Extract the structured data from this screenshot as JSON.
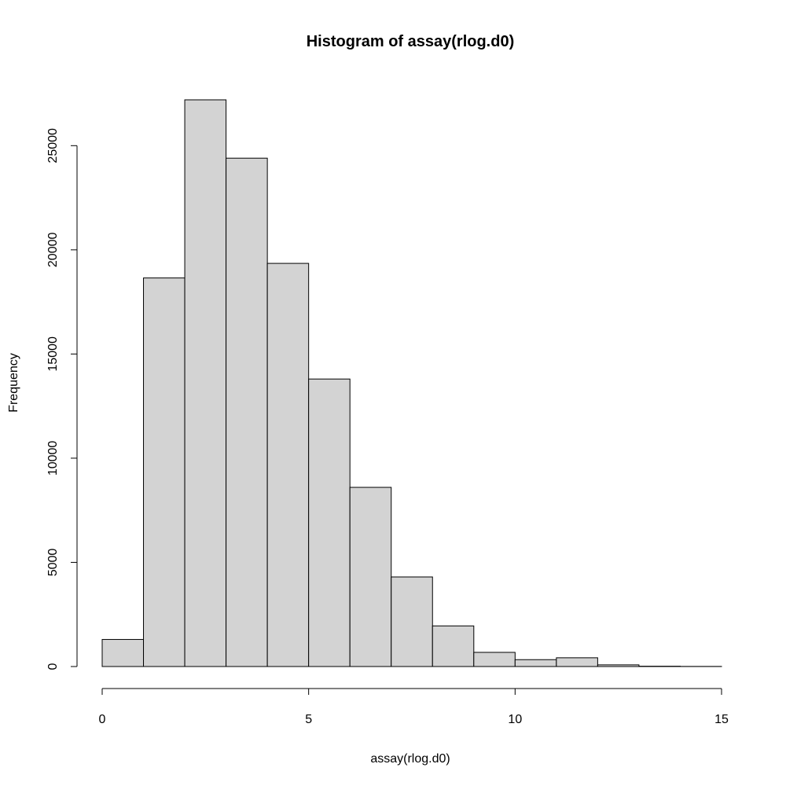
{
  "chart_data": {
    "type": "bar",
    "title": "Histogram of assay(rlog.d0)",
    "xlabel": "assay(rlog.d0)",
    "ylabel": "Frequency",
    "bin_edges": [
      0,
      1,
      2,
      3,
      4,
      5,
      6,
      7,
      8,
      9,
      10,
      11,
      12,
      13,
      14,
      15
    ],
    "values": [
      1300,
      18650,
      27200,
      24400,
      19350,
      13800,
      8600,
      4300,
      1950,
      680,
      330,
      420,
      80,
      15,
      5
    ],
    "xlim": [
      0,
      15
    ],
    "ylim": [
      0,
      27200
    ],
    "xticks": [
      0,
      5,
      10,
      15
    ],
    "xtick_labels": [
      "0",
      "5",
      "10",
      "15"
    ],
    "yticks": [
      0,
      5000,
      10000,
      15000,
      20000,
      25000
    ],
    "ytick_labels": [
      "0",
      "5000",
      "10000",
      "15000",
      "20000",
      "25000"
    ],
    "bar_color": "#d3d3d3",
    "grid": false
  }
}
